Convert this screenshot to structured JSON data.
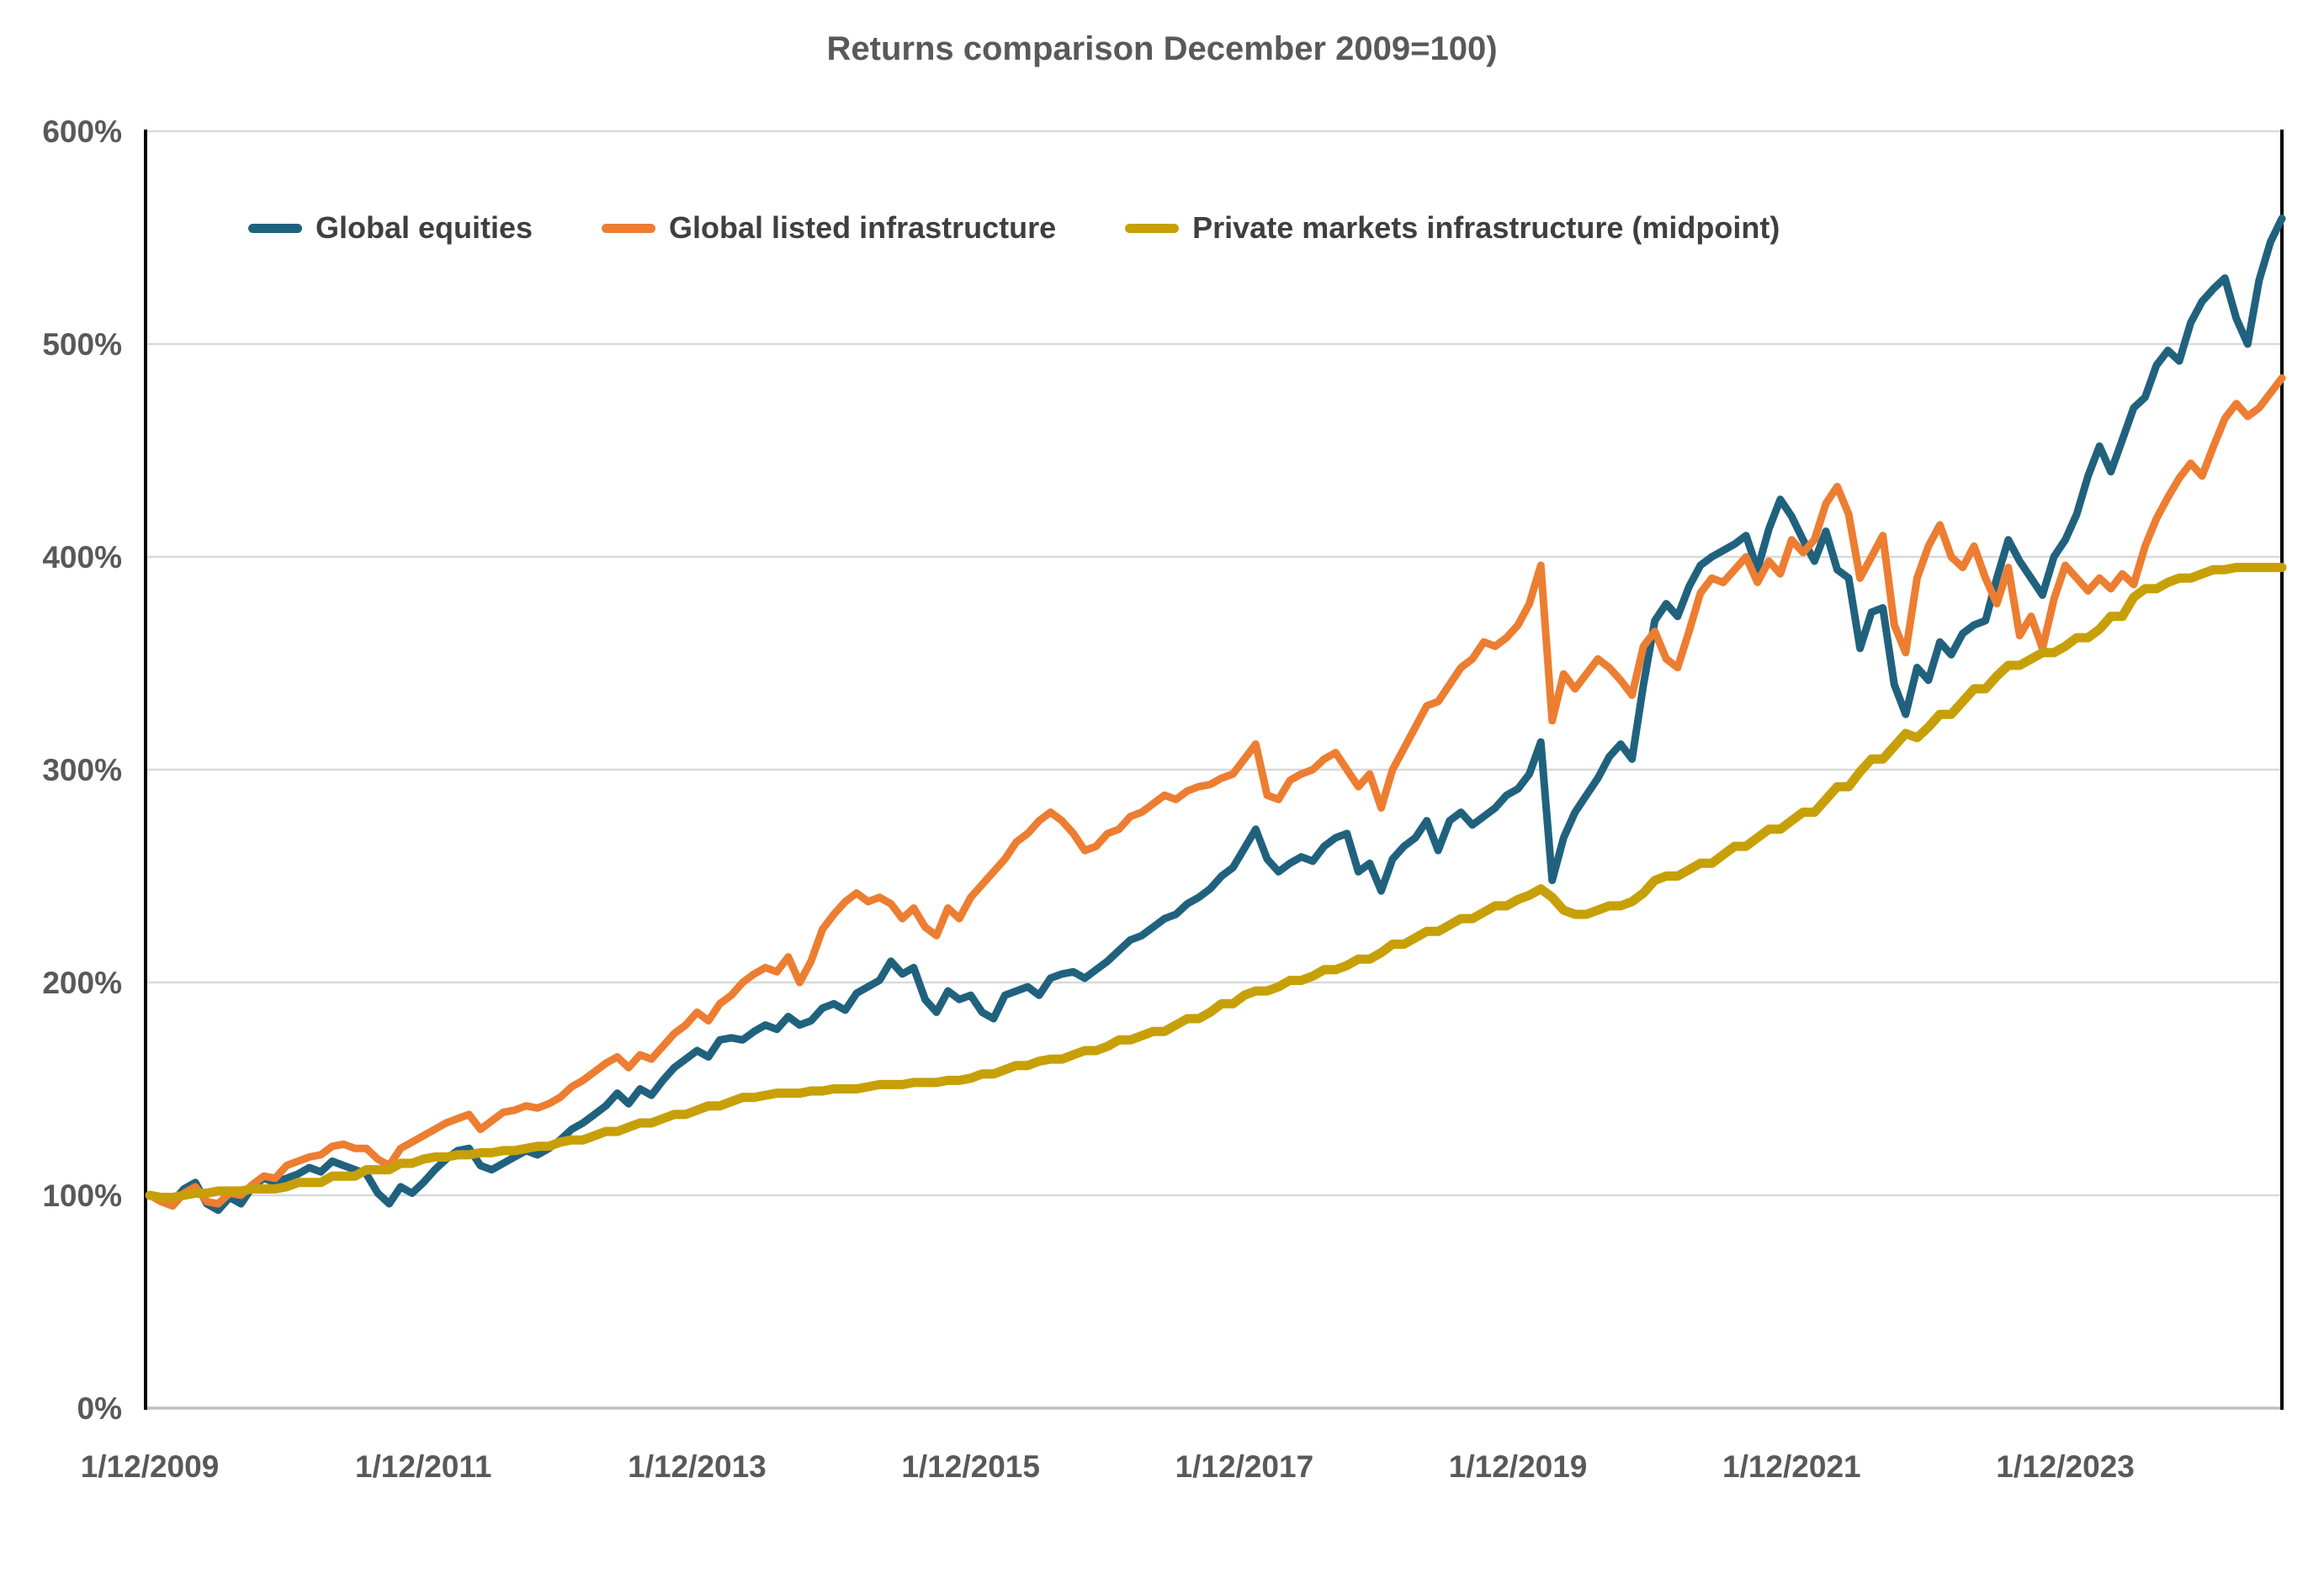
{
  "title": "Returns comparison December 2009=100)",
  "colors": {
    "equities": "#20627E",
    "listed_infra": "#ED7D31",
    "private_infra": "#C7A008",
    "gridline": "#D9D9D9",
    "baseline": "#BFBFBF",
    "axis": "#000000",
    "title_text": "#595959",
    "tick_text": "#595959",
    "legend_text": "#3f3f3f"
  },
  "chart_data": {
    "type": "line",
    "title": "Returns comparison December 2009=100)",
    "xlabel": "",
    "ylabel": "",
    "ylim": [
      0,
      600
    ],
    "y_ticks": [
      0,
      100,
      200,
      300,
      400,
      500,
      600
    ],
    "y_tick_labels": [
      "0%",
      "100%",
      "200%",
      "300%",
      "400%",
      "500%",
      "600%"
    ],
    "grid": "horizontal",
    "legend_position": "top",
    "frequency": "monthly",
    "start_month": "December 2009",
    "x_tick_every_n_points": 24,
    "x_tick_labels": [
      "1/12/2009",
      "1/12/2011",
      "1/12/2013",
      "1/12/2015",
      "1/12/2017",
      "1/12/2019",
      "1/12/2021",
      "1/12/2023"
    ],
    "series": [
      {
        "name": "Global equities",
        "color": "#20627E",
        "stroke_width": 9,
        "values": [
          100,
          98,
          97,
          103,
          106,
          96,
          93,
          99,
          96,
          104,
          108,
          106,
          108,
          110,
          113,
          111,
          116,
          114,
          112,
          110,
          101,
          96,
          104,
          101,
          106,
          112,
          117,
          121,
          122,
          114,
          112,
          115,
          118,
          121,
          119,
          122,
          126,
          131,
          134,
          138,
          142,
          148,
          143,
          150,
          147,
          154,
          160,
          164,
          168,
          165,
          173,
          174,
          173,
          177,
          180,
          178,
          184,
          180,
          182,
          188,
          190,
          187,
          195,
          198,
          201,
          210,
          204,
          207,
          192,
          186,
          196,
          192,
          194,
          186,
          183,
          194,
          196,
          198,
          194,
          202,
          204,
          205,
          202,
          206,
          210,
          215,
          220,
          222,
          226,
          230,
          232,
          237,
          240,
          244,
          250,
          254,
          263,
          272,
          258,
          252,
          256,
          259,
          257,
          264,
          268,
          270,
          252,
          256,
          243,
          258,
          264,
          268,
          276,
          262,
          276,
          280,
          274,
          278,
          282,
          288,
          291,
          298,
          313,
          248,
          268,
          280,
          288,
          296,
          306,
          312,
          305,
          340,
          370,
          378,
          372,
          386,
          396,
          400,
          403,
          406,
          410,
          394,
          413,
          427,
          419,
          408,
          398,
          412,
          394,
          390,
          357,
          374,
          376,
          340,
          326,
          348,
          342,
          360,
          354,
          364,
          368,
          370,
          390,
          408,
          398,
          390,
          382,
          400,
          408,
          420,
          438,
          452,
          440,
          455,
          470,
          475,
          490,
          497,
          492,
          510,
          520,
          526,
          531,
          512,
          500,
          530,
          548,
          559
        ]
      },
      {
        "name": "Global listed infrastructure",
        "color": "#ED7D31",
        "stroke_width": 9,
        "values": [
          100,
          97,
          95,
          101,
          104,
          97,
          96,
          101,
          100,
          105,
          109,
          108,
          114,
          116,
          118,
          119,
          123,
          124,
          122,
          122,
          117,
          114,
          122,
          125,
          128,
          131,
          134,
          136,
          138,
          131,
          135,
          139,
          140,
          142,
          141,
          143,
          146,
          151,
          154,
          158,
          162,
          165,
          160,
          166,
          164,
          170,
          176,
          180,
          186,
          182,
          190,
          194,
          200,
          204,
          207,
          205,
          212,
          200,
          210,
          225,
          232,
          238,
          242,
          238,
          240,
          237,
          230,
          235,
          226,
          222,
          235,
          230,
          240,
          246,
          252,
          258,
          266,
          270,
          276,
          280,
          276,
          270,
          262,
          264,
          270,
          272,
          278,
          280,
          284,
          288,
          286,
          290,
          292,
          293,
          296,
          298,
          305,
          312,
          288,
          286,
          295,
          298,
          300,
          305,
          308,
          300,
          292,
          298,
          282,
          300,
          310,
          320,
          330,
          332,
          340,
          348,
          352,
          360,
          358,
          362,
          368,
          378,
          396,
          323,
          345,
          338,
          345,
          352,
          348,
          342,
          335,
          358,
          365,
          352,
          348,
          365,
          383,
          390,
          388,
          394,
          400,
          388,
          398,
          392,
          408,
          402,
          408,
          425,
          433,
          420,
          390,
          400,
          410,
          368,
          355,
          390,
          405,
          415,
          400,
          395,
          405,
          390,
          378,
          395,
          363,
          372,
          357,
          380,
          396,
          390,
          384,
          390,
          385,
          392,
          387,
          405,
          418,
          428,
          437,
          444,
          438,
          452,
          465,
          472,
          466,
          470,
          477,
          484
        ]
      },
      {
        "name": "Private markets infrastructure (midpoint)",
        "color": "#C7A008",
        "stroke_width": 11,
        "values": [
          100,
          99,
          99,
          100,
          101,
          101,
          102,
          102,
          102,
          103,
          103,
          103,
          104,
          106,
          106,
          106,
          109,
          109,
          109,
          112,
          112,
          112,
          115,
          115,
          117,
          118,
          118,
          119,
          119,
          120,
          120,
          121,
          121,
          122,
          123,
          123,
          125,
          126,
          126,
          128,
          130,
          130,
          132,
          134,
          134,
          136,
          138,
          138,
          140,
          142,
          142,
          144,
          146,
          146,
          147,
          148,
          148,
          148,
          149,
          149,
          150,
          150,
          150,
          151,
          152,
          152,
          152,
          153,
          153,
          153,
          154,
          154,
          155,
          157,
          157,
          159,
          161,
          161,
          163,
          164,
          164,
          166,
          168,
          168,
          170,
          173,
          173,
          175,
          177,
          177,
          180,
          183,
          183,
          186,
          190,
          190,
          194,
          196,
          196,
          198,
          201,
          201,
          203,
          206,
          206,
          208,
          211,
          211,
          214,
          218,
          218,
          221,
          224,
          224,
          227,
          230,
          230,
          233,
          236,
          236,
          239,
          241,
          244,
          240,
          234,
          232,
          232,
          234,
          236,
          236,
          238,
          242,
          248,
          250,
          250,
          253,
          256,
          256,
          260,
          264,
          264,
          268,
          272,
          272,
          276,
          280,
          280,
          286,
          292,
          292,
          299,
          305,
          305,
          311,
          317,
          315,
          320,
          326,
          326,
          332,
          338,
          338,
          344,
          349,
          349,
          352,
          355,
          355,
          358,
          362,
          362,
          366,
          372,
          372,
          381,
          385,
          385,
          388,
          390,
          390,
          392,
          394,
          394,
          395,
          395,
          395,
          395,
          395
        ]
      }
    ]
  }
}
